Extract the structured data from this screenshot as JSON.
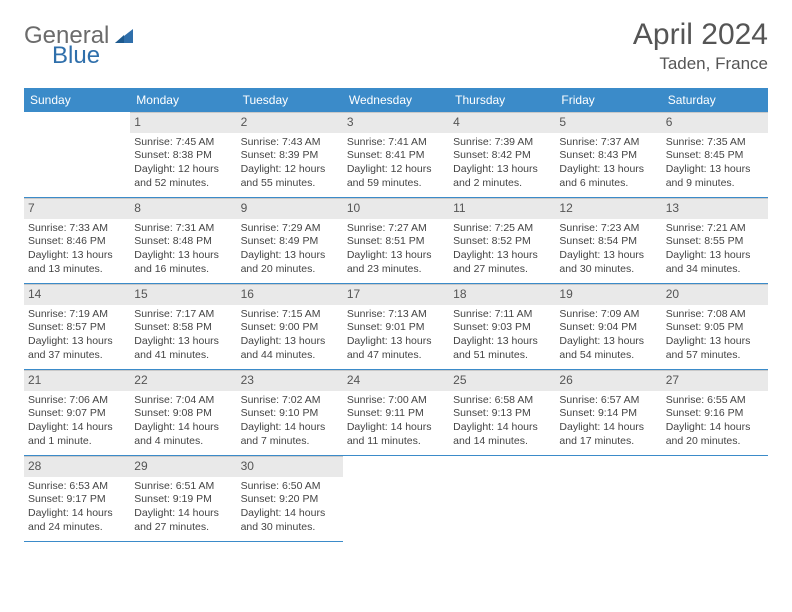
{
  "logo": {
    "text1": "General",
    "text2": "Blue"
  },
  "title": "April 2024",
  "location": "Taden, France",
  "colors": {
    "header_bg": "#3b8bc9",
    "header_text": "#ffffff",
    "daynum_bg": "#e9e9e9",
    "cell_border_bottom": "#3b8bc9",
    "cell_border_top": "#c9c9c9",
    "logo_gray": "#6b6b6b",
    "logo_blue": "#2f6fab"
  },
  "day_names": [
    "Sunday",
    "Monday",
    "Tuesday",
    "Wednesday",
    "Thursday",
    "Friday",
    "Saturday"
  ],
  "first_weekday_offset": 1,
  "days": [
    {
      "n": "1",
      "sunrise": "7:45 AM",
      "sunset": "8:38 PM",
      "daylight": "12 hours and 52 minutes."
    },
    {
      "n": "2",
      "sunrise": "7:43 AM",
      "sunset": "8:39 PM",
      "daylight": "12 hours and 55 minutes."
    },
    {
      "n": "3",
      "sunrise": "7:41 AM",
      "sunset": "8:41 PM",
      "daylight": "12 hours and 59 minutes."
    },
    {
      "n": "4",
      "sunrise": "7:39 AM",
      "sunset": "8:42 PM",
      "daylight": "13 hours and 2 minutes."
    },
    {
      "n": "5",
      "sunrise": "7:37 AM",
      "sunset": "8:43 PM",
      "daylight": "13 hours and 6 minutes."
    },
    {
      "n": "6",
      "sunrise": "7:35 AM",
      "sunset": "8:45 PM",
      "daylight": "13 hours and 9 minutes."
    },
    {
      "n": "7",
      "sunrise": "7:33 AM",
      "sunset": "8:46 PM",
      "daylight": "13 hours and 13 minutes."
    },
    {
      "n": "8",
      "sunrise": "7:31 AM",
      "sunset": "8:48 PM",
      "daylight": "13 hours and 16 minutes."
    },
    {
      "n": "9",
      "sunrise": "7:29 AM",
      "sunset": "8:49 PM",
      "daylight": "13 hours and 20 minutes."
    },
    {
      "n": "10",
      "sunrise": "7:27 AM",
      "sunset": "8:51 PM",
      "daylight": "13 hours and 23 minutes."
    },
    {
      "n": "11",
      "sunrise": "7:25 AM",
      "sunset": "8:52 PM",
      "daylight": "13 hours and 27 minutes."
    },
    {
      "n": "12",
      "sunrise": "7:23 AM",
      "sunset": "8:54 PM",
      "daylight": "13 hours and 30 minutes."
    },
    {
      "n": "13",
      "sunrise": "7:21 AM",
      "sunset": "8:55 PM",
      "daylight": "13 hours and 34 minutes."
    },
    {
      "n": "14",
      "sunrise": "7:19 AM",
      "sunset": "8:57 PM",
      "daylight": "13 hours and 37 minutes."
    },
    {
      "n": "15",
      "sunrise": "7:17 AM",
      "sunset": "8:58 PM",
      "daylight": "13 hours and 41 minutes."
    },
    {
      "n": "16",
      "sunrise": "7:15 AM",
      "sunset": "9:00 PM",
      "daylight": "13 hours and 44 minutes."
    },
    {
      "n": "17",
      "sunrise": "7:13 AM",
      "sunset": "9:01 PM",
      "daylight": "13 hours and 47 minutes."
    },
    {
      "n": "18",
      "sunrise": "7:11 AM",
      "sunset": "9:03 PM",
      "daylight": "13 hours and 51 minutes."
    },
    {
      "n": "19",
      "sunrise": "7:09 AM",
      "sunset": "9:04 PM",
      "daylight": "13 hours and 54 minutes."
    },
    {
      "n": "20",
      "sunrise": "7:08 AM",
      "sunset": "9:05 PM",
      "daylight": "13 hours and 57 minutes."
    },
    {
      "n": "21",
      "sunrise": "7:06 AM",
      "sunset": "9:07 PM",
      "daylight": "14 hours and 1 minute."
    },
    {
      "n": "22",
      "sunrise": "7:04 AM",
      "sunset": "9:08 PM",
      "daylight": "14 hours and 4 minutes."
    },
    {
      "n": "23",
      "sunrise": "7:02 AM",
      "sunset": "9:10 PM",
      "daylight": "14 hours and 7 minutes."
    },
    {
      "n": "24",
      "sunrise": "7:00 AM",
      "sunset": "9:11 PM",
      "daylight": "14 hours and 11 minutes."
    },
    {
      "n": "25",
      "sunrise": "6:58 AM",
      "sunset": "9:13 PM",
      "daylight": "14 hours and 14 minutes."
    },
    {
      "n": "26",
      "sunrise": "6:57 AM",
      "sunset": "9:14 PM",
      "daylight": "14 hours and 17 minutes."
    },
    {
      "n": "27",
      "sunrise": "6:55 AM",
      "sunset": "9:16 PM",
      "daylight": "14 hours and 20 minutes."
    },
    {
      "n": "28",
      "sunrise": "6:53 AM",
      "sunset": "9:17 PM",
      "daylight": "14 hours and 24 minutes."
    },
    {
      "n": "29",
      "sunrise": "6:51 AM",
      "sunset": "9:19 PM",
      "daylight": "14 hours and 27 minutes."
    },
    {
      "n": "30",
      "sunrise": "6:50 AM",
      "sunset": "9:20 PM",
      "daylight": "14 hours and 30 minutes."
    }
  ],
  "labels": {
    "sunrise": "Sunrise:",
    "sunset": "Sunset:",
    "daylight": "Daylight:"
  }
}
